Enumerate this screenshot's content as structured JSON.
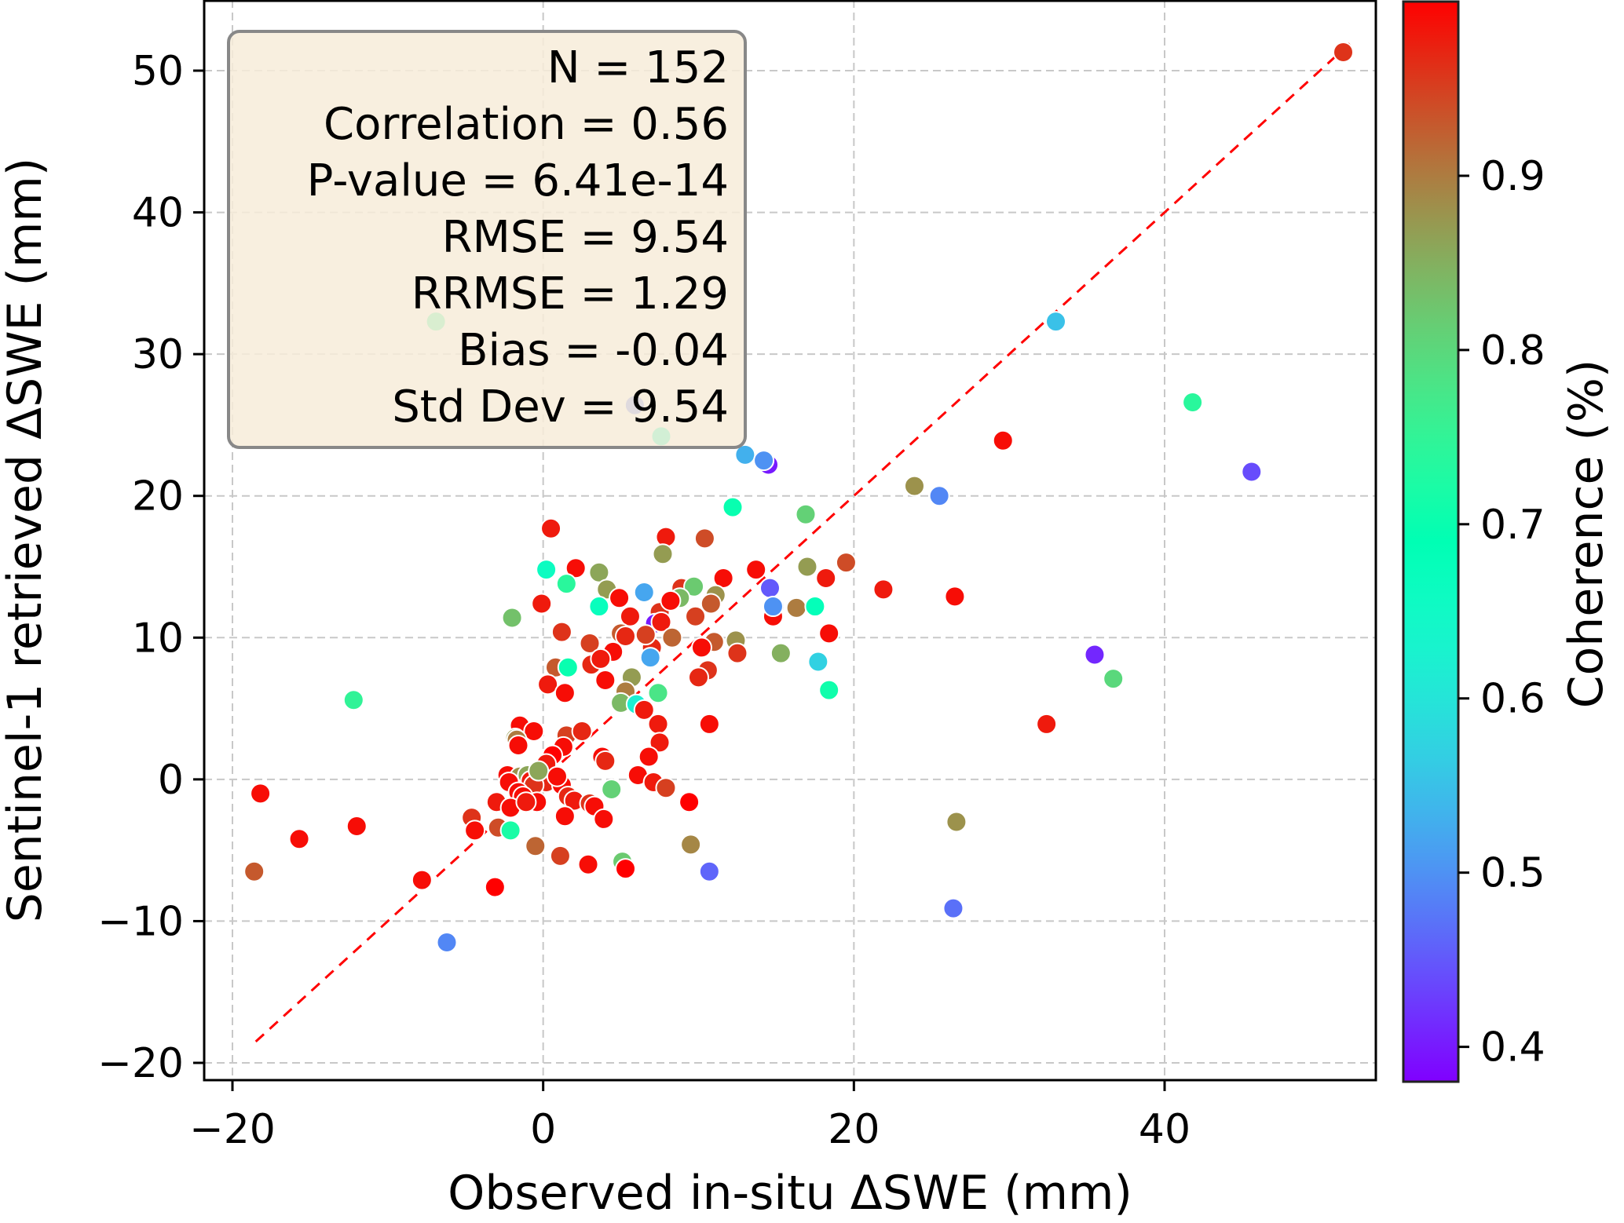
{
  "chart_data": {
    "type": "scatter",
    "xlabel": "Observed in-situ ΔSWE (mm)",
    "ylabel": "Sentinel-1 retrieved ΔSWE (mm)",
    "xlim": [
      -22,
      55
    ],
    "ylim": [
      -22,
      55
    ],
    "xticks": [
      -20,
      0,
      20,
      40
    ],
    "yticks": [
      -20,
      -10,
      0,
      10,
      20,
      30,
      40,
      50
    ],
    "xtick_labels": [
      "−20",
      "0",
      "20",
      "40"
    ],
    "ytick_labels": [
      "−20",
      "−10",
      "0",
      "10",
      "20",
      "30",
      "40",
      "50"
    ],
    "grid": true,
    "one_to_one_line": {
      "from": [
        -18.5,
        -18.5
      ],
      "to": [
        52,
        52
      ],
      "color": "#ff0000",
      "style": "dashed"
    },
    "colorbar": {
      "label": "Coherence (%)",
      "colormap": "rainbow",
      "range": [
        0.38,
        1.0
      ],
      "ticks": [
        0.4,
        0.5,
        0.6,
        0.7,
        0.8,
        0.9
      ],
      "tick_labels": [
        "0.4",
        "0.5",
        "0.6",
        "0.7",
        "0.8",
        "0.9"
      ]
    },
    "stats_box": {
      "position": "top-left",
      "lines": [
        "N = 152",
        "Correlation = 0.56",
        "P-value = 6.41e-14",
        "RMSE = 9.54",
        "RRMSE = 1.29",
        "Bias = -0.04",
        "Std Dev = 9.54"
      ]
    },
    "points": [
      {
        "x": 51.5,
        "y": 51.3,
        "c": 0.96
      },
      {
        "x": 33.0,
        "y": 32.3,
        "c": 0.55
      },
      {
        "x": -6.9,
        "y": 32.3,
        "c": 0.75
      },
      {
        "x": 41.8,
        "y": 26.6,
        "c": 0.74
      },
      {
        "x": 45.6,
        "y": 21.7,
        "c": 0.44
      },
      {
        "x": 29.6,
        "y": 23.9,
        "c": 0.99
      },
      {
        "x": 5.9,
        "y": 26.4,
        "c": 0.47
      },
      {
        "x": 7.6,
        "y": 24.2,
        "c": 0.68
      },
      {
        "x": 13.0,
        "y": 22.9,
        "c": 0.53
      },
      {
        "x": 14.5,
        "y": 22.2,
        "c": 0.4
      },
      {
        "x": 14.2,
        "y": 22.5,
        "c": 0.5
      },
      {
        "x": 23.9,
        "y": 20.7,
        "c": 0.88
      },
      {
        "x": 25.5,
        "y": 20.0,
        "c": 0.49
      },
      {
        "x": 12.2,
        "y": 19.2,
        "c": 0.7
      },
      {
        "x": 16.9,
        "y": 18.7,
        "c": 0.81
      },
      {
        "x": 0.5,
        "y": 17.7,
        "c": 0.98
      },
      {
        "x": 7.9,
        "y": 17.1,
        "c": 0.98
      },
      {
        "x": 10.4,
        "y": 17.0,
        "c": 0.94
      },
      {
        "x": 7.7,
        "y": 15.9,
        "c": 0.87
      },
      {
        "x": 0.2,
        "y": 14.8,
        "c": 0.66
      },
      {
        "x": 2.1,
        "y": 14.9,
        "c": 0.99
      },
      {
        "x": 3.6,
        "y": 14.6,
        "c": 0.86
      },
      {
        "x": 13.7,
        "y": 14.8,
        "c": 0.99
      },
      {
        "x": 17.0,
        "y": 15.0,
        "c": 0.87
      },
      {
        "x": 19.5,
        "y": 15.3,
        "c": 0.94
      },
      {
        "x": 11.6,
        "y": 14.2,
        "c": 0.99
      },
      {
        "x": 18.2,
        "y": 14.2,
        "c": 0.98
      },
      {
        "x": 1.5,
        "y": 13.8,
        "c": 0.74
      },
      {
        "x": 6.5,
        "y": 13.2,
        "c": 0.52
      },
      {
        "x": 8.9,
        "y": 13.5,
        "c": 0.96
      },
      {
        "x": 9.7,
        "y": 13.6,
        "c": 0.82
      },
      {
        "x": 14.6,
        "y": 13.5,
        "c": 0.45
      },
      {
        "x": 21.9,
        "y": 13.4,
        "c": 0.98
      },
      {
        "x": 26.5,
        "y": 12.9,
        "c": 0.99
      },
      {
        "x": 4.1,
        "y": 13.4,
        "c": 0.87
      },
      {
        "x": 8.8,
        "y": 12.8,
        "c": 0.84
      },
      {
        "x": 11.1,
        "y": 13.0,
        "c": 0.88
      },
      {
        "x": 4.9,
        "y": 12.8,
        "c": 0.99
      },
      {
        "x": -0.1,
        "y": 12.4,
        "c": 0.98
      },
      {
        "x": 3.6,
        "y": 12.2,
        "c": 0.67
      },
      {
        "x": 10.8,
        "y": 12.4,
        "c": 0.93
      },
      {
        "x": 14.9,
        "y": 12.2,
        "c": 0.48
      },
      {
        "x": 16.3,
        "y": 12.1,
        "c": 0.9
      },
      {
        "x": 17.5,
        "y": 12.2,
        "c": 0.68
      },
      {
        "x": 7.5,
        "y": 11.8,
        "c": 0.96
      },
      {
        "x": 9.8,
        "y": 11.5,
        "c": 0.95
      },
      {
        "x": 14.8,
        "y": 11.5,
        "c": 0.99
      },
      {
        "x": -2.0,
        "y": 11.4,
        "c": 0.83
      },
      {
        "x": 5.6,
        "y": 11.5,
        "c": 0.98
      },
      {
        "x": 7.2,
        "y": 11.0,
        "c": 0.4
      },
      {
        "x": 7.6,
        "y": 11.1,
        "c": 0.98
      },
      {
        "x": 1.2,
        "y": 10.4,
        "c": 0.96
      },
      {
        "x": 5.0,
        "y": 10.3,
        "c": 0.93
      },
      {
        "x": 5.3,
        "y": 10.1,
        "c": 0.97
      },
      {
        "x": 8.3,
        "y": 10.0,
        "c": 0.92
      },
      {
        "x": 18.4,
        "y": 10.3,
        "c": 0.99
      },
      {
        "x": 12.4,
        "y": 9.8,
        "c": 0.88
      },
      {
        "x": 11.0,
        "y": 9.7,
        "c": 0.93
      },
      {
        "x": 3.0,
        "y": 9.6,
        "c": 0.95
      },
      {
        "x": 7.0,
        "y": 9.3,
        "c": 0.97
      },
      {
        "x": 10.2,
        "y": 9.3,
        "c": 0.99
      },
      {
        "x": 4.5,
        "y": 9.0,
        "c": 0.99
      },
      {
        "x": 12.5,
        "y": 8.9,
        "c": 0.96
      },
      {
        "x": 15.3,
        "y": 8.9,
        "c": 0.85
      },
      {
        "x": 35.5,
        "y": 8.8,
        "c": 0.41
      },
      {
        "x": 6.9,
        "y": 8.6,
        "c": 0.52
      },
      {
        "x": 17.7,
        "y": 8.3,
        "c": 0.57
      },
      {
        "x": 3.1,
        "y": 8.1,
        "c": 0.97
      },
      {
        "x": 0.8,
        "y": 7.9,
        "c": 0.93
      },
      {
        "x": 1.6,
        "y": 7.9,
        "c": 0.7
      },
      {
        "x": 10.6,
        "y": 7.7,
        "c": 0.96
      },
      {
        "x": 4.0,
        "y": 7.0,
        "c": 0.99
      },
      {
        "x": 5.7,
        "y": 7.2,
        "c": 0.87
      },
      {
        "x": 10.0,
        "y": 7.2,
        "c": 0.97
      },
      {
        "x": 36.7,
        "y": 7.1,
        "c": 0.8
      },
      {
        "x": 0.3,
        "y": 6.7,
        "c": 0.98
      },
      {
        "x": -12.2,
        "y": 5.6,
        "c": 0.75
      },
      {
        "x": 1.4,
        "y": 6.1,
        "c": 0.99
      },
      {
        "x": 5.3,
        "y": 6.2,
        "c": 0.9
      },
      {
        "x": 7.4,
        "y": 6.1,
        "c": 0.78
      },
      {
        "x": 18.4,
        "y": 6.3,
        "c": 0.71
      },
      {
        "x": 5.0,
        "y": 5.4,
        "c": 0.84
      },
      {
        "x": 6.0,
        "y": 5.3,
        "c": 0.62
      },
      {
        "x": 6.5,
        "y": 4.9,
        "c": 0.98
      },
      {
        "x": -1.5,
        "y": 3.8,
        "c": 0.99
      },
      {
        "x": 7.4,
        "y": 3.9,
        "c": 0.98
      },
      {
        "x": 10.7,
        "y": 3.9,
        "c": 0.99
      },
      {
        "x": 32.4,
        "y": 3.9,
        "c": 0.98
      },
      {
        "x": -0.6,
        "y": 3.4,
        "c": 0.99
      },
      {
        "x": 1.5,
        "y": 3.1,
        "c": 0.95
      },
      {
        "x": -1.8,
        "y": 2.9,
        "c": 0.87
      },
      {
        "x": -1.7,
        "y": 2.8,
        "c": 0.9
      },
      {
        "x": 7.5,
        "y": 2.6,
        "c": 0.98
      },
      {
        "x": -1.6,
        "y": 2.4,
        "c": 0.99
      },
      {
        "x": 1.3,
        "y": 2.3,
        "c": 0.99
      },
      {
        "x": 0.6,
        "y": 1.7,
        "c": 1.0
      },
      {
        "x": 3.8,
        "y": 1.6,
        "c": 0.99
      },
      {
        "x": 6.8,
        "y": 1.6,
        "c": 0.99
      },
      {
        "x": 4.0,
        "y": 1.3,
        "c": 0.97
      },
      {
        "x": 0.2,
        "y": 1.1,
        "c": 0.98
      },
      {
        "x": -2.3,
        "y": 0.3,
        "c": 0.99
      },
      {
        "x": -1.5,
        "y": 0.2,
        "c": 0.88
      },
      {
        "x": -1.0,
        "y": 0.3,
        "c": 0.86
      },
      {
        "x": 6.1,
        "y": 0.3,
        "c": 0.99
      },
      {
        "x": -0.8,
        "y": -0.1,
        "c": 0.98
      },
      {
        "x": -2.2,
        "y": -0.2,
        "c": 0.99
      },
      {
        "x": 0.2,
        "y": -0.2,
        "c": 0.97
      },
      {
        "x": 7.1,
        "y": -0.2,
        "c": 0.98
      },
      {
        "x": -0.6,
        "y": -0.4,
        "c": 0.96
      },
      {
        "x": 1.2,
        "y": -0.4,
        "c": 0.99
      },
      {
        "x": 7.9,
        "y": -0.6,
        "c": 0.95
      },
      {
        "x": 4.4,
        "y": -0.7,
        "c": 0.81
      },
      {
        "x": -1.6,
        "y": -0.9,
        "c": 0.99
      },
      {
        "x": -1.3,
        "y": -1.2,
        "c": 0.99
      },
      {
        "x": 1.6,
        "y": -1.2,
        "c": 0.97
      },
      {
        "x": -18.2,
        "y": -1.0,
        "c": 0.99
      },
      {
        "x": 2.0,
        "y": -1.5,
        "c": 0.98
      },
      {
        "x": -3.0,
        "y": -1.6,
        "c": 0.98
      },
      {
        "x": -0.4,
        "y": -1.6,
        "c": 0.99
      },
      {
        "x": 3.0,
        "y": -1.7,
        "c": 0.96
      },
      {
        "x": 9.4,
        "y": -1.6,
        "c": 1.0
      },
      {
        "x": 3.3,
        "y": -1.9,
        "c": 0.99
      },
      {
        "x": -2.1,
        "y": -2.0,
        "c": 0.99
      },
      {
        "x": 1.4,
        "y": -2.6,
        "c": 0.99
      },
      {
        "x": 3.9,
        "y": -2.8,
        "c": 0.99
      },
      {
        "x": -4.6,
        "y": -2.7,
        "c": 0.96
      },
      {
        "x": -15.7,
        "y": -4.2,
        "c": 0.99
      },
      {
        "x": -12.0,
        "y": -3.3,
        "c": 0.99
      },
      {
        "x": -2.9,
        "y": -3.4,
        "c": 0.94
      },
      {
        "x": -2.1,
        "y": -3.6,
        "c": 0.72
      },
      {
        "x": 26.6,
        "y": -3.0,
        "c": 0.88
      },
      {
        "x": -4.4,
        "y": -3.6,
        "c": 0.99
      },
      {
        "x": -0.5,
        "y": -4.7,
        "c": 0.92
      },
      {
        "x": 9.5,
        "y": -4.6,
        "c": 0.89
      },
      {
        "x": 1.1,
        "y": -5.4,
        "c": 0.95
      },
      {
        "x": 5.1,
        "y": -5.8,
        "c": 0.82
      },
      {
        "x": 2.9,
        "y": -6.0,
        "c": 0.99
      },
      {
        "x": 5.3,
        "y": -6.3,
        "c": 1.0
      },
      {
        "x": 10.7,
        "y": -6.5,
        "c": 0.46
      },
      {
        "x": -18.6,
        "y": -6.5,
        "c": 0.93
      },
      {
        "x": -7.8,
        "y": -7.1,
        "c": 0.99
      },
      {
        "x": -3.1,
        "y": -7.6,
        "c": 1.0
      },
      {
        "x": 26.4,
        "y": -9.1,
        "c": 0.47
      },
      {
        "x": -6.2,
        "y": -11.5,
        "c": 0.49
      },
      {
        "x": 14.8,
        "y": 12.2,
        "c": 0.5
      },
      {
        "x": 3.7,
        "y": 8.5,
        "c": 0.98
      },
      {
        "x": -0.3,
        "y": 0.6,
        "c": 0.86
      },
      {
        "x": 2.5,
        "y": 3.4,
        "c": 0.97
      },
      {
        "x": 8.2,
        "y": 12.6,
        "c": 0.99
      },
      {
        "x": 6.6,
        "y": 10.2,
        "c": 0.95
      },
      {
        "x": -1.1,
        "y": -1.6,
        "c": 0.98
      },
      {
        "x": 0.9,
        "y": 0.2,
        "c": 0.99
      }
    ]
  }
}
